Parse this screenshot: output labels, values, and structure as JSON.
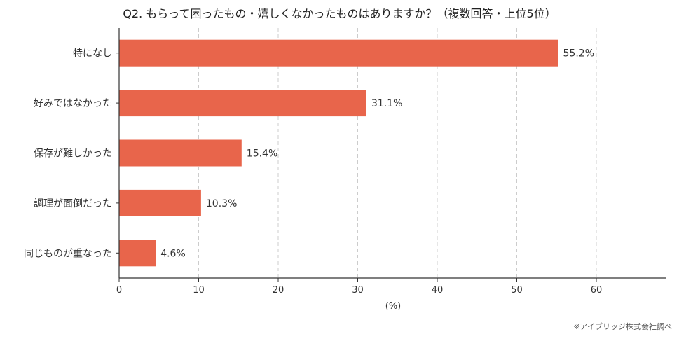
{
  "chart_data": {
    "type": "bar",
    "orientation": "horizontal",
    "title": "Q2. もらって困ったもの・嬉しくなかったものはありますか？（複数回答・上位5位）",
    "categories": [
      "特になし",
      "好みではなかった",
      "保存が難しかった",
      "調理が面倒だった",
      "同じものが重なった"
    ],
    "values": [
      55.2,
      31.1,
      15.4,
      10.3,
      4.6
    ],
    "value_labels": [
      "55.2%",
      "31.1%",
      "15.4%",
      "10.3%",
      "4.6%"
    ],
    "xlabel": "(%)",
    "xlim": [
      0,
      60
    ],
    "xticks": [
      "0",
      "10",
      "20",
      "30",
      "40",
      "50",
      "60"
    ],
    "grid": "vertical dashed",
    "bar_color": "#E8654B"
  },
  "footnote": "※アイブリッジ株式会社調べ"
}
